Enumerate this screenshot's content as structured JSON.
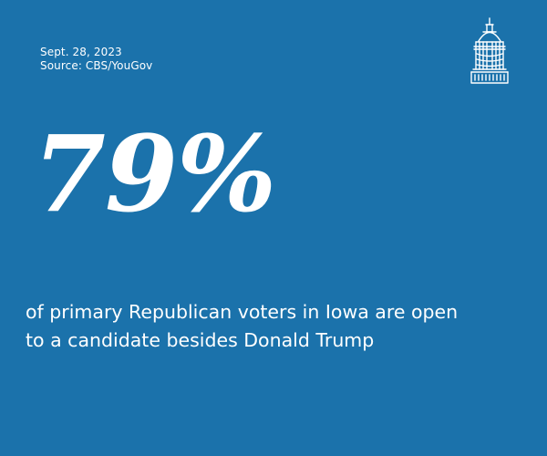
{
  "info_card": {
    "date": "Sept. 28, 2023",
    "source": "Source: CBS/YouGov",
    "big_number": "79%",
    "statement_lines": [
      "of primary Republican voters in Iowa are open",
      "to a candidate besides Donald Trump"
    ],
    "logo_icon": "capitol-dome-icon",
    "colors": {
      "background": "#1b72ab",
      "text": "#ffffff"
    }
  }
}
